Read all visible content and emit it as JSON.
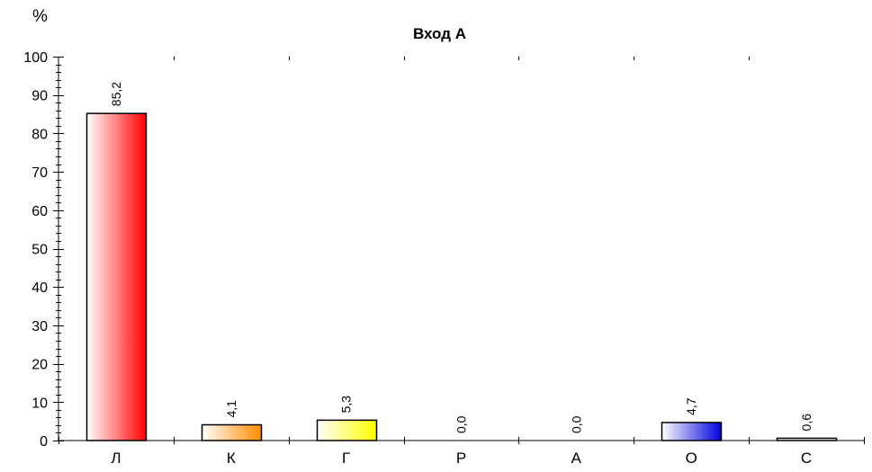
{
  "chart_data": {
    "type": "bar",
    "title": "Вход А",
    "ylabel": "%",
    "xlabel": "",
    "categories": [
      "Л",
      "К",
      "Г",
      "Р",
      "А",
      "О",
      "С"
    ],
    "values": [
      85.2,
      4.1,
      5.3,
      0.0,
      0.0,
      4.7,
      0.6
    ],
    "value_labels": [
      "85,2",
      "4,1",
      "5,3",
      "0,0",
      "0,0",
      "4,7",
      "0,6"
    ],
    "bar_colors": [
      "#ff0000",
      "#ff8c00",
      "#ffff00",
      "#ffffff",
      "#ffffff",
      "#0000dd",
      "#ffffff"
    ],
    "ylim": [
      0,
      100
    ],
    "yticks": [
      "0",
      "10",
      "20",
      "30",
      "40",
      "50",
      "60",
      "70",
      "80",
      "90",
      "100"
    ],
    "grid": false,
    "legend": "none"
  }
}
